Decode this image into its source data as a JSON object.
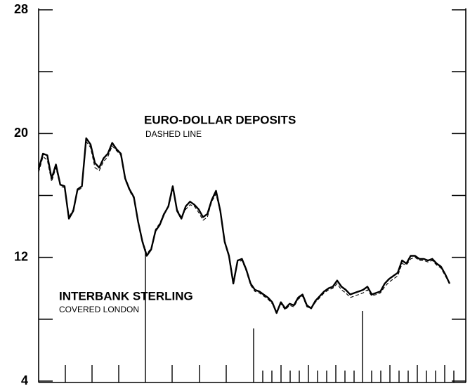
{
  "chart_data": {
    "type": "line",
    "ylim": [
      4,
      28
    ],
    "yticks": [
      4,
      12,
      20,
      28
    ],
    "yminor_ticks": [
      8,
      16,
      24
    ],
    "series": [
      {
        "name": "INTERBANK STERLING",
        "color": "#000000",
        "dash": false,
        "values": [
          17.7,
          18.7,
          18.6,
          17.1,
          18.0,
          16.7,
          16.6,
          14.5,
          15.0,
          16.4,
          16.6,
          19.7,
          19.3,
          18.1,
          17.8,
          18.4,
          18.7,
          19.4,
          19.0,
          18.7,
          17.1,
          16.4,
          15.9,
          14.3,
          13.0,
          12.1,
          12.5,
          13.7,
          14.1,
          14.8,
          15.3,
          16.6,
          15.0,
          14.5,
          15.3,
          15.6,
          15.4,
          15.1,
          14.6,
          14.8,
          15.7,
          16.3,
          15.0,
          13.0,
          12.1,
          10.3,
          11.8,
          11.9,
          11.2,
          10.3,
          9.9,
          9.8,
          9.6,
          9.4,
          9.1,
          8.4,
          9.1,
          8.7,
          9.0,
          8.9,
          9.4,
          9.6,
          8.9,
          8.7,
          9.2,
          9.5,
          9.8,
          10.0,
          10.1,
          10.5,
          10.1,
          9.9,
          9.6,
          9.7,
          9.8,
          9.9,
          10.1,
          9.6,
          9.7,
          9.8,
          10.3,
          10.6,
          10.8,
          11.0,
          11.8,
          11.6,
          12.1,
          12.1,
          11.9,
          11.9,
          11.8,
          11.9,
          11.6,
          11.4,
          10.9,
          10.3
        ]
      },
      {
        "name": "EURO-DOLLAR DEPOSITS",
        "color": "#000000",
        "dash": true,
        "values": [
          17.5,
          18.5,
          18.3,
          16.9,
          17.8,
          16.6,
          16.5,
          14.6,
          15.1,
          16.3,
          16.5,
          19.5,
          19.1,
          17.8,
          17.6,
          18.2,
          18.5,
          19.2,
          18.9,
          18.6,
          17.0,
          16.3,
          15.8,
          14.3,
          13.1,
          12.2,
          12.6,
          13.8,
          14.2,
          14.9,
          15.2,
          16.4,
          15.1,
          14.6,
          15.1,
          15.4,
          15.3,
          14.9,
          14.4,
          14.6,
          15.6,
          16.1,
          14.9,
          13.1,
          12.2,
          10.5,
          11.7,
          11.8,
          11.1,
          10.2,
          9.8,
          9.7,
          9.5,
          9.3,
          9.0,
          8.5,
          9.0,
          8.6,
          8.9,
          8.8,
          9.3,
          9.5,
          8.8,
          8.7,
          9.1,
          9.4,
          9.7,
          9.9,
          10.0,
          10.3,
          9.9,
          9.7,
          9.4,
          9.5,
          9.6,
          9.7,
          9.9,
          9.5,
          9.6,
          9.7,
          10.1,
          10.4,
          10.6,
          10.8,
          11.6,
          11.5,
          11.9,
          12.0,
          11.8,
          11.8,
          11.7,
          11.8,
          11.5,
          11.3,
          10.8,
          10.3
        ]
      }
    ],
    "annotations": [
      "DASHED LINE",
      "COVERED LONDON"
    ]
  }
}
